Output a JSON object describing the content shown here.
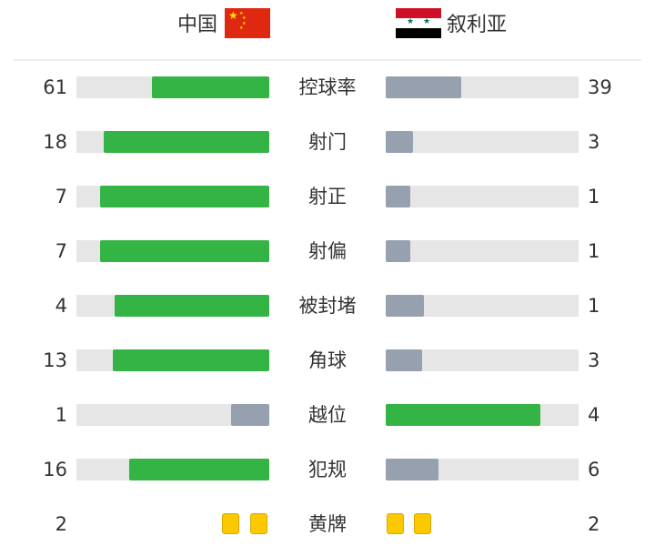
{
  "home": {
    "name": "中国",
    "flag": "china-flag"
  },
  "away": {
    "name": "叙利亚",
    "flag": "syria-flag"
  },
  "colors": {
    "winner": "#34b445",
    "loser": "#97a0ae",
    "track": "#e6e6e6",
    "card": "#fcc800"
  },
  "stats": [
    {
      "label": "控球率",
      "home": 61,
      "away": 39
    },
    {
      "label": "射门",
      "home": 18,
      "away": 3
    },
    {
      "label": "射正",
      "home": 7,
      "away": 1
    },
    {
      "label": "射偏",
      "home": 7,
      "away": 1
    },
    {
      "label": "被封堵",
      "home": 4,
      "away": 1
    },
    {
      "label": "角球",
      "home": 13,
      "away": 3
    },
    {
      "label": "越位",
      "home": 1,
      "away": 4
    },
    {
      "label": "犯规",
      "home": 16,
      "away": 6
    }
  ],
  "yellow_cards": {
    "label": "黄牌",
    "home": 2,
    "away": 2
  }
}
